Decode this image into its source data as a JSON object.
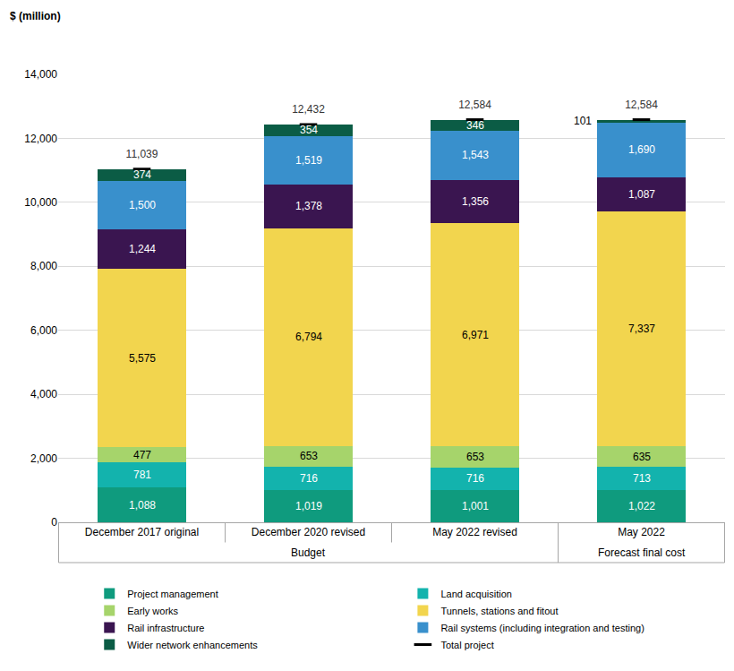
{
  "chart_data": {
    "type": "bar",
    "stacked": true,
    "data_labels": true,
    "grid": true,
    "legend": "bottom",
    "ylabel": "$ (million)",
    "categories": [
      "December 2017 original",
      "December 2020 revised",
      "May 2022 revised",
      "May 2022"
    ],
    "category_groups": [
      "Budget",
      "Budget",
      "Budget",
      "Forecast final cost"
    ],
    "ylim": [
      0,
      14000
    ],
    "yticks": [
      0,
      {
        "value": 2000,
        "label": "2,000"
      },
      {
        "value": 4000,
        "label": "4,000"
      },
      {
        "value": 6000,
        "label": "6,000"
      },
      {
        "value": 8000,
        "label": "8,000"
      },
      {
        "value": 10000,
        "label": "10,000"
      },
      {
        "value": 12000,
        "label": "12,000"
      },
      {
        "value": 14000,
        "label": "14,000"
      }
    ],
    "series": [
      {
        "name": "Project management",
        "color": "#0f9b7e",
        "values": [
          1088,
          1019,
          1001,
          1022
        ],
        "value_labels": [
          "1,088",
          "1,019",
          "1,001",
          "1,022"
        ]
      },
      {
        "name": "Land acquisition",
        "color": "#13b3ad",
        "values": [
          781,
          716,
          716,
          713
        ]
      },
      {
        "name": "Early works",
        "color": "#a6d46b",
        "values": [
          477,
          653,
          653,
          635
        ]
      },
      {
        "name": "Tunnels, stations and fitout",
        "color": "#f2d54e",
        "values": [
          5575,
          6794,
          6971,
          7337
        ],
        "value_labels": [
          "5,575",
          "6,794",
          "6,971",
          "7,337"
        ]
      },
      {
        "name": "Rail infrastructure",
        "color": "#3a1550",
        "values": [
          1244,
          1378,
          1356,
          1087
        ],
        "value_labels": [
          "1,244",
          "1,378",
          "1,356",
          "1,087"
        ]
      },
      {
        "name": "Rail systems (including integration and testing)",
        "color": "#3990cc",
        "values": [
          1500,
          1519,
          1543,
          1690
        ],
        "value_labels": [
          "1,500",
          "1,519",
          "1,543",
          "1,690"
        ]
      },
      {
        "name": "Wider network enhancements",
        "color": "#0b5c45",
        "values": [
          374,
          354,
          346,
          101
        ]
      },
      {
        "name": "Total project",
        "type": "scatter",
        "marker": "dash",
        "color": "#000000",
        "values": [
          11039,
          12432,
          12584,
          12584
        ],
        "value_labels": [
          "11,039",
          "12,432",
          "12,584",
          "12,584"
        ]
      }
    ]
  }
}
